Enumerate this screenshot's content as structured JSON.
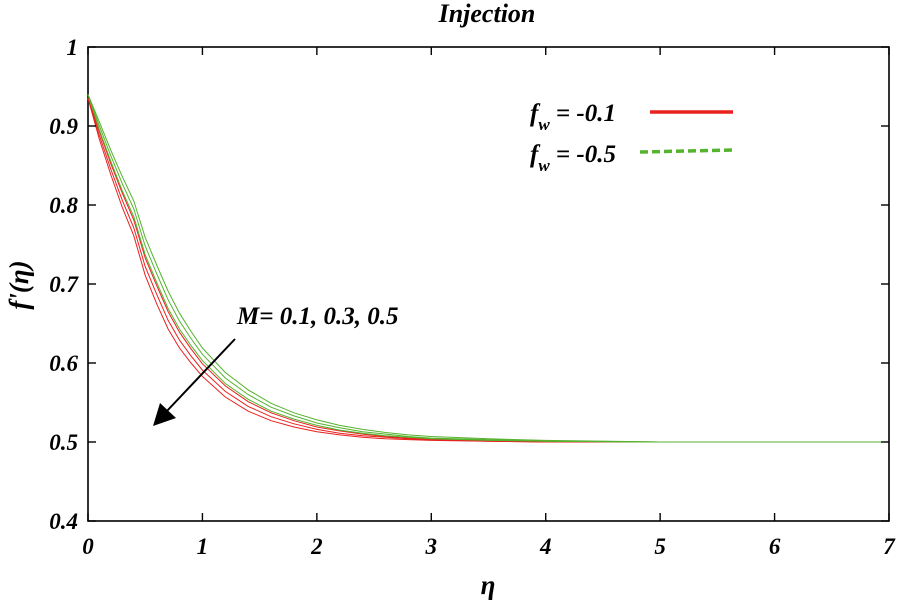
{
  "chart_data": {
    "type": "line",
    "title": "Injection",
    "xlabel": "η",
    "ylabel": "f'(η)",
    "xlim": [
      0,
      7
    ],
    "ylim": [
      0.4,
      1.0
    ],
    "x_ticks": [
      "0",
      "1",
      "2",
      "3",
      "4",
      "5",
      "6",
      "7"
    ],
    "y_ticks": [
      "0.4",
      "0.5",
      "0.6",
      "0.7",
      "0.8",
      "0.9",
      "1"
    ],
    "grid": false,
    "legend_position": "top-right",
    "legend": [
      {
        "symbol": "f",
        "subscript": "w",
        "value_text": " = -0.1",
        "color": "#e8201f",
        "dash": "solid"
      },
      {
        "symbol": "f",
        "subscript": "w",
        "value_text": " = -0.5",
        "color": "#55b32e",
        "dash": "dashed"
      }
    ],
    "annotation": {
      "text": "M= 0.1, 0.3, 0.5",
      "arrow_direction": "down-left"
    },
    "x": [
      0,
      0.1,
      0.2,
      0.3,
      0.4,
      0.5,
      0.6,
      0.7,
      0.8,
      0.9,
      1.0,
      1.2,
      1.4,
      1.6,
      1.8,
      2.0,
      2.2,
      2.4,
      2.6,
      2.8,
      3.0,
      3.5,
      4.0,
      5.0,
      6.0,
      7.0
    ],
    "series": [
      {
        "color": "#e8201f",
        "values": [
          0.935,
          0.883,
          0.838,
          0.797,
          0.761,
          0.711,
          0.675,
          0.643,
          0.619,
          0.6,
          0.583,
          0.557,
          0.539,
          0.527,
          0.519,
          0.513,
          0.509,
          0.506,
          0.504,
          0.503,
          0.502,
          0.501,
          0.5,
          0.5,
          0.5,
          0.5
        ]
      },
      {
        "color": "#e8201f",
        "values": [
          0.935,
          0.888,
          0.845,
          0.806,
          0.771,
          0.722,
          0.687,
          0.654,
          0.629,
          0.609,
          0.591,
          0.564,
          0.545,
          0.532,
          0.523,
          0.516,
          0.511,
          0.508,
          0.506,
          0.504,
          0.503,
          0.501,
          0.5,
          0.5,
          0.5,
          0.5
        ]
      },
      {
        "color": "#e8201f",
        "values": [
          0.935,
          0.893,
          0.852,
          0.815,
          0.781,
          0.733,
          0.698,
          0.665,
          0.639,
          0.618,
          0.599,
          0.571,
          0.551,
          0.537,
          0.527,
          0.519,
          0.514,
          0.51,
          0.507,
          0.505,
          0.504,
          0.502,
          0.501,
          0.5,
          0.5,
          0.5
        ]
      },
      {
        "color": "#55b32e",
        "values": [
          0.94,
          0.895,
          0.855,
          0.818,
          0.785,
          0.737,
          0.702,
          0.669,
          0.643,
          0.622,
          0.603,
          0.574,
          0.554,
          0.539,
          0.529,
          0.521,
          0.515,
          0.511,
          0.508,
          0.506,
          0.504,
          0.502,
          0.501,
          0.5,
          0.5,
          0.5
        ]
      },
      {
        "color": "#55b32e",
        "values": [
          0.94,
          0.9,
          0.862,
          0.827,
          0.795,
          0.748,
          0.713,
          0.68,
          0.653,
          0.631,
          0.611,
          0.581,
          0.56,
          0.544,
          0.533,
          0.524,
          0.518,
          0.513,
          0.51,
          0.507,
          0.505,
          0.503,
          0.501,
          0.5,
          0.5,
          0.5
        ]
      },
      {
        "color": "#55b32e",
        "values": [
          0.94,
          0.905,
          0.869,
          0.836,
          0.805,
          0.759,
          0.724,
          0.691,
          0.663,
          0.64,
          0.619,
          0.588,
          0.566,
          0.549,
          0.537,
          0.528,
          0.521,
          0.516,
          0.512,
          0.509,
          0.507,
          0.504,
          0.502,
          0.5,
          0.5,
          0.5
        ]
      }
    ]
  }
}
